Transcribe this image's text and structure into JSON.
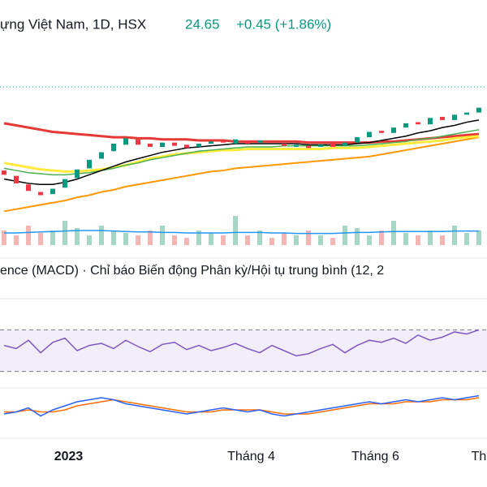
{
  "chart_data": {
    "type": "candlestick",
    "title": "ựng Việt Nam, 1D, HSX",
    "last_price": "24.65",
    "change": "+0.45 (+1.86%)",
    "macd_title": "ence (MACD) · Chỉ báo Biến động Phân kỳ/Hội tụ trung bình (12, 2",
    "ylim": [
      12,
      27.5
    ],
    "open": [
      18.8,
      18.3,
      17.5,
      16.8,
      16.6,
      17.2,
      18.1,
      19.0,
      19.9,
      20.6,
      21.2,
      21.7,
      21.3,
      21.0,
      21.4,
      21.2,
      21.0,
      21.3,
      21.6,
      21.3,
      21.6,
      21.4,
      21.5,
      21.3,
      21.0,
      21.1,
      21.0,
      21.3,
      21.1,
      21.4,
      21.9,
      22.5,
      22.3,
      22.8,
      23.3,
      23.1,
      23.8,
      23.5,
      24.0,
      24.2
    ],
    "close": [
      18.4,
      17.6,
      16.9,
      16.5,
      17.1,
      18.0,
      18.9,
      19.8,
      20.5,
      21.3,
      21.8,
      21.2,
      21.0,
      21.4,
      21.1,
      20.9,
      21.3,
      21.5,
      21.4,
      21.7,
      21.3,
      21.6,
      21.4,
      21.1,
      21.2,
      20.9,
      21.2,
      21.0,
      21.4,
      21.9,
      22.4,
      22.3,
      22.8,
      23.2,
      23.1,
      23.7,
      23.5,
      24.0,
      24.2,
      24.65
    ],
    "series": [
      {
        "color": "#ff9800",
        "width": 2,
        "values": [
          15.0,
          15.2,
          15.4,
          15.6,
          15.8,
          16.0,
          16.3,
          16.5,
          16.8,
          17.0,
          17.3,
          17.5,
          17.7,
          17.9,
          18.1,
          18.3,
          18.5,
          18.7,
          18.8,
          19.0,
          19.1,
          19.2,
          19.3,
          19.4,
          19.5,
          19.6,
          19.7,
          19.8,
          19.9,
          20.0,
          20.1,
          20.3,
          20.5,
          20.7,
          20.9,
          21.1,
          21.3,
          21.5,
          21.7,
          21.9
        ]
      },
      {
        "color": "#e53935",
        "width": 3,
        "values": [
          23.2,
          23.0,
          22.8,
          22.6,
          22.4,
          22.3,
          22.2,
          22.1,
          22.0,
          21.9,
          21.9,
          21.8,
          21.8,
          21.7,
          21.7,
          21.7,
          21.6,
          21.6,
          21.6,
          21.5,
          21.5,
          21.5,
          21.5,
          21.5,
          21.5,
          21.4,
          21.4,
          21.4,
          21.4,
          21.4,
          21.4,
          21.5,
          21.5,
          21.6,
          21.7,
          21.8,
          21.9,
          22.0,
          22.1,
          22.2
        ]
      },
      {
        "color": "#ffeb3b",
        "width": 3,
        "values": [
          19.5,
          19.3,
          19.1,
          18.9,
          18.8,
          18.7,
          18.7,
          18.8,
          18.9,
          19.1,
          19.3,
          19.6,
          19.9,
          20.1,
          20.3,
          20.4,
          20.5,
          20.6,
          20.7,
          20.7,
          20.8,
          20.8,
          20.8,
          20.8,
          20.8,
          20.8,
          20.8,
          20.9,
          20.9,
          20.9,
          21.0,
          21.1,
          21.2,
          21.3,
          21.4,
          21.5,
          21.6,
          21.8,
          21.9,
          22.0
        ]
      },
      {
        "color": "#4caf50",
        "width": 1.5,
        "values": [
          19.0,
          18.8,
          18.6,
          18.5,
          18.4,
          18.4,
          18.5,
          18.6,
          18.8,
          19.0,
          19.3,
          19.5,
          19.8,
          20.0,
          20.2,
          20.4,
          20.6,
          20.7,
          20.8,
          20.9,
          21.0,
          21.0,
          21.0,
          21.1,
          21.1,
          21.1,
          21.1,
          21.1,
          21.1,
          21.1,
          21.2,
          21.3,
          21.4,
          21.5,
          21.7,
          21.8,
          22.0,
          22.2,
          22.4,
          22.6
        ]
      },
      {
        "color": "#000000",
        "width": 1.5,
        "values": [
          18.0,
          17.8,
          17.6,
          17.5,
          17.5,
          17.7,
          18.0,
          18.4,
          18.8,
          19.2,
          19.6,
          19.9,
          20.2,
          20.5,
          20.7,
          20.9,
          21.0,
          21.1,
          21.2,
          21.3,
          21.3,
          21.3,
          21.3,
          21.3,
          21.3,
          21.2,
          21.2,
          21.2,
          21.2,
          21.3,
          21.4,
          21.6,
          21.8,
          22.0,
          22.3,
          22.5,
          22.8,
          23.0,
          23.3,
          23.5
        ]
      }
    ],
    "volume": {
      "ylim": [
        0,
        10
      ],
      "values": [
        3,
        2,
        4,
        2.5,
        3,
        5,
        3.5,
        2,
        4,
        3,
        2.5,
        2,
        3,
        4,
        2,
        1.5,
        3,
        2.5,
        2,
        6,
        2,
        3,
        1.5,
        2.5,
        2,
        3,
        2,
        1.5,
        4,
        3.5,
        2,
        3,
        5,
        2.5,
        2,
        3,
        2,
        4,
        2.5,
        3
      ],
      "ma": [
        2.5,
        2.5,
        2.6,
        2.7,
        2.8,
        2.9,
        3.0,
        3.0,
        3.0,
        2.9,
        2.8,
        2.7,
        2.7,
        2.6,
        2.6,
        2.5,
        2.5,
        2.5,
        2.5,
        2.6,
        2.6,
        2.6,
        2.5,
        2.5,
        2.4,
        2.4,
        2.4,
        2.4,
        2.5,
        2.6,
        2.6,
        2.7,
        2.8,
        2.8,
        2.8,
        2.8,
        2.8,
        2.9,
        2.9,
        2.9
      ]
    },
    "rsi": {
      "ylim": [
        0,
        100
      ],
      "levels": [
        30,
        70
      ],
      "color": "#7e57c2",
      "values": [
        55,
        52,
        60,
        48,
        58,
        62,
        50,
        55,
        57,
        52,
        60,
        54,
        49,
        56,
        58,
        51,
        55,
        50,
        53,
        57,
        52,
        48,
        55,
        50,
        45,
        47,
        52,
        56,
        48,
        55,
        60,
        58,
        62,
        57,
        65,
        60,
        63,
        68,
        66,
        70
      ]
    },
    "macd": {
      "ylim": [
        -1,
        1
      ],
      "macd": [
        -0.2,
        -0.1,
        0.1,
        -0.3,
        0.0,
        0.2,
        0.4,
        0.5,
        0.6,
        0.5,
        0.3,
        0.2,
        0.1,
        0.0,
        -0.1,
        -0.2,
        -0.1,
        0.0,
        0.1,
        0.0,
        -0.1,
        0.0,
        -0.2,
        -0.3,
        -0.2,
        -0.1,
        0.0,
        0.1,
        0.2,
        0.3,
        0.4,
        0.3,
        0.4,
        0.5,
        0.4,
        0.5,
        0.6,
        0.5,
        0.6,
        0.7
      ],
      "signal": [
        -0.1,
        -0.1,
        0.0,
        -0.1,
        -0.1,
        0.0,
        0.2,
        0.3,
        0.4,
        0.5,
        0.4,
        0.3,
        0.2,
        0.1,
        0.0,
        -0.1,
        -0.1,
        -0.1,
        0.0,
        0.0,
        0.0,
        0.0,
        -0.1,
        -0.2,
        -0.2,
        -0.2,
        -0.1,
        0.0,
        0.1,
        0.2,
        0.3,
        0.3,
        0.3,
        0.4,
        0.4,
        0.4,
        0.5,
        0.5,
        0.5,
        0.6
      ]
    },
    "xticks": [
      {
        "value": 5.3,
        "label": "2023"
      },
      {
        "value": 20.3,
        "label": "Tháng 4"
      },
      {
        "value": 30.5,
        "label": "Tháng 6"
      },
      {
        "value": 39,
        "label": "Th"
      }
    ]
  }
}
